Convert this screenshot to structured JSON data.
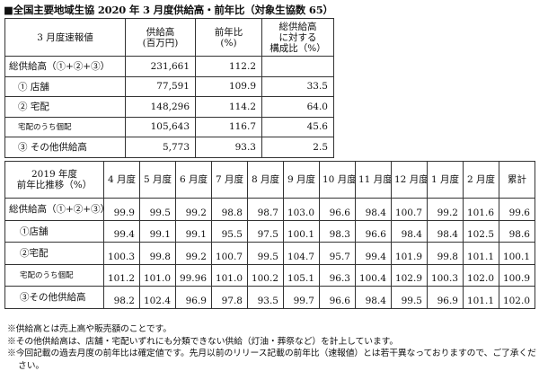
{
  "title": "■全国主要地域生協 2020 年 3 月度供給高・前年比（対象生協数 65）",
  "table1": {
    "headers": [
      "3 月度速報値",
      "供給高\n(百万円)",
      "前年比\n(%)",
      "総供給高\nに対する\n構成比（%）"
    ],
    "rows": [
      {
        "label": "総供給高（①+②+③）",
        "style": "",
        "values": [
          "231,661",
          "112.2",
          ""
        ]
      },
      {
        "label": "① 店舗",
        "style": "sub",
        "values": [
          "77,591",
          "109.9",
          "33.5"
        ]
      },
      {
        "label": "② 宅配",
        "style": "sub",
        "values": [
          "148,296",
          "114.2",
          "64.0"
        ]
      },
      {
        "label": "宅配のうち個配",
        "style": "small",
        "values": [
          "105,643",
          "116.7",
          "45.6"
        ]
      },
      {
        "label": "③ その他供給高",
        "style": "sub",
        "values": [
          "5,773",
          "93.3",
          "2.5"
        ]
      }
    ]
  },
  "table2": {
    "corner": "2019 年度\n前年比推移（%）",
    "months": [
      "4 月度",
      "5 月度",
      "6 月度",
      "7 月度",
      "8 月度",
      "9 月度",
      "10 月度",
      "11 月度",
      "12 月度",
      "1 月度",
      "2 月度",
      "累計"
    ],
    "rows": [
      {
        "label": "総供給高（①+②+③）",
        "style": "",
        "values": [
          "99.9",
          "99.5",
          "99.2",
          "98.8",
          "98.7",
          "103.0",
          "96.6",
          "98.4",
          "100.7",
          "99.2",
          "101.6",
          "99.6"
        ]
      },
      {
        "label": "①店舗",
        "style": "sub",
        "values": [
          "99.4",
          "99.1",
          "99.1",
          "95.5",
          "97.5",
          "100.1",
          "98.3",
          "96.6",
          "98.4",
          "98.4",
          "102.5",
          "98.6"
        ]
      },
      {
        "label": "②宅配",
        "style": "sub",
        "values": [
          "100.3",
          "99.8",
          "99.2",
          "100.7",
          "99.5",
          "104.7",
          "95.7",
          "99.4",
          "101.9",
          "99.8",
          "101.1",
          "100.1"
        ]
      },
      {
        "label": "宅配のうち個配",
        "style": "small",
        "values": [
          "101.2",
          "101.0",
          "99.96",
          "101.0",
          "100.2",
          "105.1",
          "96.3",
          "100.4",
          "102.9",
          "100.3",
          "102.0",
          "100.9"
        ]
      },
      {
        "label": "③その他供給高",
        "style": "sub",
        "values": [
          "98.2",
          "102.4",
          "96.9",
          "97.8",
          "93.5",
          "99.7",
          "96.6",
          "98.4",
          "99.5",
          "96.9",
          "101.1",
          "102.0"
        ]
      }
    ]
  },
  "notes": [
    "※供給高とは売上高や販売額のことです。",
    "※その他供給高は、店舗・宅配いずれにも分類できない供給（灯油・葬祭など）を計上しています。",
    "※今回記載の過去月度の前年比は確定値です。先月以前のリリース記載の前年比（速報値）とは若干異なっておりますので、ご了承くだ",
    "さい。"
  ]
}
